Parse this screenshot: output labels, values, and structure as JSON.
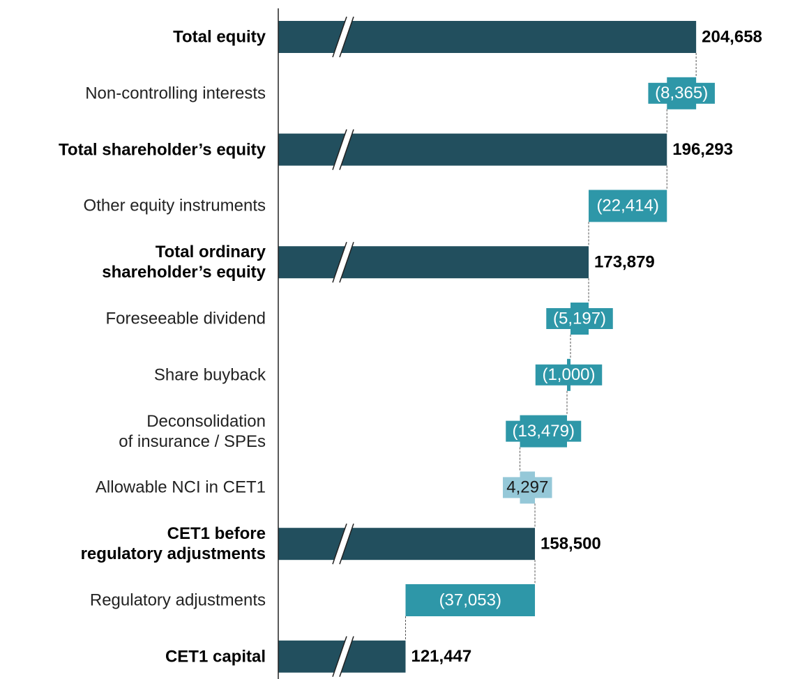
{
  "chart_data": {
    "type": "waterfall",
    "categories": [
      "Total equity",
      "Non-controlling interests",
      "Total shareholder’s equity",
      "Other equity instruments",
      "Total ordinary\nshareholder’s equity",
      "Foreseeable dividend",
      "Share buyback",
      "Deconsolidation\nof insurance / SPEs",
      "Allowable NCI in CET1",
      "CET1 before\nregulatory adjustments",
      "Regulatory adjustments",
      "CET1 capital"
    ],
    "measure": [
      "total",
      "relative",
      "total",
      "relative",
      "total",
      "relative",
      "relative",
      "relative",
      "relative",
      "total",
      "relative",
      "total"
    ],
    "values": [
      204658,
      -8365,
      196293,
      -22414,
      173879,
      -5197,
      -1000,
      -13479,
      4297,
      158500,
      -37053,
      121447
    ],
    "value_labels": [
      "204,658",
      "(8,365)",
      "196,293",
      "(22,414)",
      "173,879",
      "(5,197)",
      "(1,000)",
      "(13,479)",
      "4,297",
      "158,500",
      "(37,053)",
      "121,447"
    ],
    "colors": {
      "total": "#224f5e",
      "decrease": "#2e97a8",
      "increase": "#95c8d8"
    },
    "xlim": [
      85000,
      225000
    ],
    "axis_break": true
  }
}
